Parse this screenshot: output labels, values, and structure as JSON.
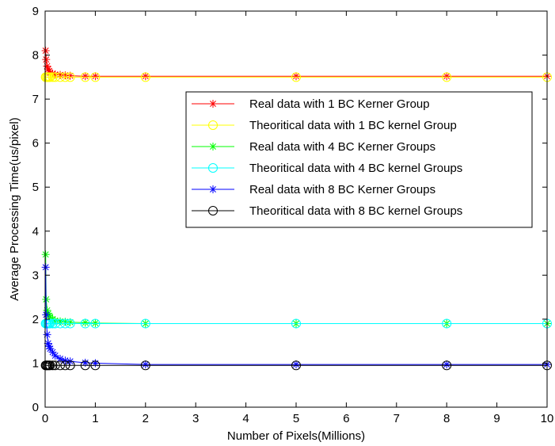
{
  "chart_data": {
    "type": "line",
    "title": "",
    "xlabel": "Number of Pixels(Millions)",
    "ylabel": "Average Processing Time(us/pixel)",
    "xlim": [
      0,
      10
    ],
    "ylim": [
      0,
      9
    ],
    "x_ticks": [
      0,
      1,
      2,
      3,
      4,
      5,
      6,
      7,
      8,
      9,
      10
    ],
    "y_ticks": [
      0,
      1,
      2,
      3,
      4,
      5,
      6,
      7,
      8,
      9
    ],
    "grid": false,
    "legend_position": "upper right",
    "series": [
      {
        "name": "Real data with 1 BC Kerner Group",
        "color": "#ff0000",
        "marker": "asterisk",
        "x": [
          0.01,
          0.02,
          0.04,
          0.06,
          0.08,
          0.1,
          0.15,
          0.2,
          0.3,
          0.4,
          0.5,
          0.8,
          1,
          2,
          5,
          8,
          10
        ],
        "y": [
          8.1,
          7.9,
          7.75,
          7.68,
          7.64,
          7.6,
          7.58,
          7.56,
          7.55,
          7.54,
          7.53,
          7.52,
          7.52,
          7.52,
          7.52,
          7.52,
          7.52
        ]
      },
      {
        "name": "Theoritical data with 1 BC kernel Group",
        "color": "#ffff00",
        "marker": "circle",
        "x": [
          0.01,
          0.02,
          0.04,
          0.06,
          0.08,
          0.1,
          0.15,
          0.2,
          0.3,
          0.4,
          0.5,
          0.8,
          1,
          2,
          5,
          8,
          10
        ],
        "y": [
          7.5,
          7.5,
          7.5,
          7.5,
          7.5,
          7.5,
          7.5,
          7.5,
          7.5,
          7.5,
          7.5,
          7.5,
          7.5,
          7.5,
          7.5,
          7.5,
          7.5
        ]
      },
      {
        "name": "Real data with 4 BC Kerner Groups",
        "color": "#00ff00",
        "marker": "asterisk",
        "x": [
          0.01,
          0.02,
          0.04,
          0.06,
          0.08,
          0.1,
          0.15,
          0.2,
          0.3,
          0.4,
          0.5,
          0.8,
          1,
          2,
          5,
          8,
          10
        ],
        "y": [
          3.47,
          2.45,
          2.2,
          2.12,
          2.08,
          2.05,
          2.0,
          1.97,
          1.95,
          1.94,
          1.93,
          1.92,
          1.91,
          1.9,
          1.9,
          1.9,
          1.9
        ]
      },
      {
        "name": "Theoritical data with 4 BC kernel Groups",
        "color": "#00ffff",
        "marker": "circle",
        "x": [
          0.01,
          0.02,
          0.04,
          0.06,
          0.08,
          0.1,
          0.15,
          0.2,
          0.3,
          0.4,
          0.5,
          0.8,
          1,
          2,
          5,
          8,
          10
        ],
        "y": [
          1.9,
          1.9,
          1.9,
          1.9,
          1.9,
          1.9,
          1.9,
          1.9,
          1.9,
          1.9,
          1.9,
          1.9,
          1.9,
          1.9,
          1.9,
          1.9,
          1.9
        ]
      },
      {
        "name": "Real data with 8 BC Kerner Groups",
        "color": "#0000ff",
        "marker": "asterisk",
        "x": [
          0.01,
          0.02,
          0.04,
          0.06,
          0.08,
          0.1,
          0.15,
          0.2,
          0.3,
          0.4,
          0.5,
          0.8,
          1,
          2,
          5,
          8,
          10
        ],
        "y": [
          3.18,
          2.1,
          1.65,
          1.45,
          1.38,
          1.33,
          1.25,
          1.17,
          1.1,
          1.06,
          1.04,
          1.01,
          1.0,
          0.97,
          0.97,
          0.97,
          0.97
        ]
      },
      {
        "name": "Theoritical data with 8 BC kernel Groups",
        "color": "#000000",
        "marker": "circle",
        "x": [
          0.01,
          0.02,
          0.04,
          0.06,
          0.08,
          0.1,
          0.15,
          0.2,
          0.3,
          0.4,
          0.5,
          0.8,
          1,
          2,
          5,
          8,
          10
        ],
        "y": [
          0.95,
          0.95,
          0.95,
          0.95,
          0.95,
          0.95,
          0.95,
          0.95,
          0.95,
          0.95,
          0.95,
          0.95,
          0.95,
          0.95,
          0.95,
          0.95,
          0.95
        ]
      }
    ]
  }
}
